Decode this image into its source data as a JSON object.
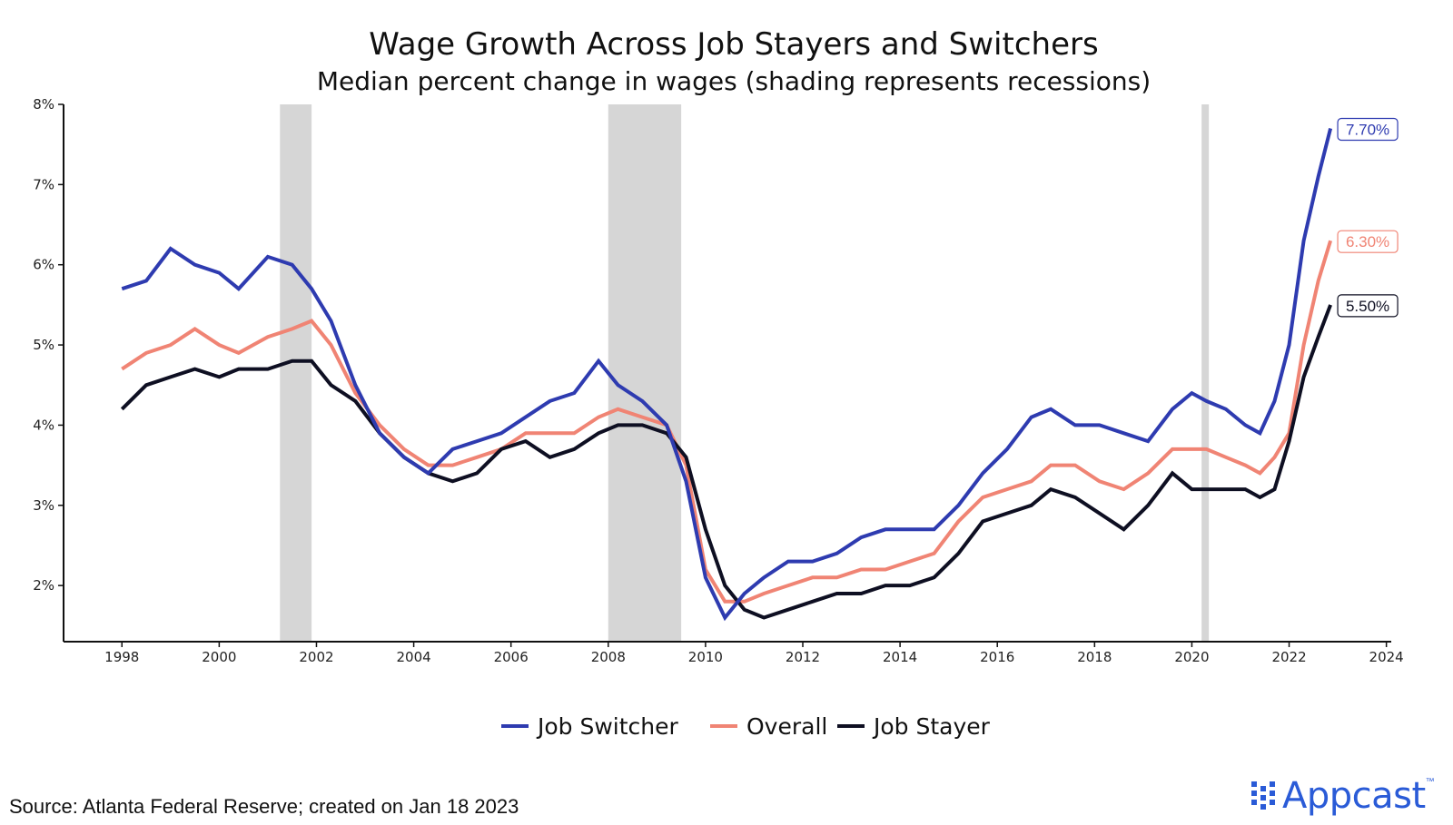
{
  "chart_data": {
    "type": "line",
    "title": "Wage Growth Across Job Stayers and Switchers",
    "subtitle": "Median percent change in wages (shading represents recessions)",
    "xlabel": "",
    "ylabel": "",
    "xlim": [
      1996.8,
      2024.1
    ],
    "ylim": [
      1.3,
      8.0
    ],
    "x_ticks": [
      1998,
      2000,
      2002,
      2004,
      2006,
      2008,
      2010,
      2012,
      2014,
      2016,
      2018,
      2020,
      2022,
      2024
    ],
    "x_tick_labels": [
      "1998",
      "2000",
      "2002",
      "2004",
      "2006",
      "2008",
      "2010",
      "2012",
      "2014",
      "2016",
      "2018",
      "2020",
      "2022",
      "2024"
    ],
    "y_ticks": [
      2,
      3,
      4,
      5,
      6,
      7,
      8
    ],
    "y_tick_labels": [
      "2%",
      "3%",
      "4%",
      "5%",
      "6%",
      "7%",
      "8%"
    ],
    "grid": false,
    "legend": "bottom",
    "recessions": [
      {
        "start": 2001.25,
        "end": 2001.9
      },
      {
        "start": 2008.0,
        "end": 2009.5
      },
      {
        "start": 2020.2,
        "end": 2020.35
      }
    ],
    "series": [
      {
        "name": "Job Switcher",
        "color": "#2e3bb0",
        "end_label": "7.70%",
        "x": [
          1998.0,
          1998.5,
          1999.0,
          1999.5,
          2000.0,
          2000.4,
          2001.0,
          2001.5,
          2001.9,
          2002.3,
          2002.8,
          2003.3,
          2003.8,
          2004.3,
          2004.8,
          2005.3,
          2005.8,
          2006.3,
          2006.8,
          2007.3,
          2007.8,
          2008.2,
          2008.7,
          2009.2,
          2009.6,
          2010.0,
          2010.4,
          2010.8,
          2011.2,
          2011.7,
          2012.2,
          2012.7,
          2013.2,
          2013.7,
          2014.2,
          2014.7,
          2015.2,
          2015.7,
          2016.2,
          2016.7,
          2017.1,
          2017.6,
          2018.1,
          2018.6,
          2019.1,
          2019.6,
          2020.0,
          2020.3,
          2020.7,
          2021.1,
          2021.4,
          2021.7,
          2022.0,
          2022.3,
          2022.6,
          2022.85
        ],
        "values": [
          5.7,
          5.8,
          6.2,
          6.0,
          5.9,
          5.7,
          6.1,
          6.0,
          5.7,
          5.3,
          4.5,
          3.9,
          3.6,
          3.4,
          3.7,
          3.8,
          3.9,
          4.1,
          4.3,
          4.4,
          4.8,
          4.5,
          4.3,
          4.0,
          3.3,
          2.1,
          1.6,
          1.9,
          2.1,
          2.3,
          2.3,
          2.4,
          2.6,
          2.7,
          2.7,
          2.7,
          3.0,
          3.4,
          3.7,
          4.1,
          4.2,
          4.0,
          4.0,
          3.9,
          3.8,
          4.2,
          4.4,
          4.3,
          4.2,
          4.0,
          3.9,
          4.3,
          5.0,
          6.3,
          7.1,
          7.7
        ]
      },
      {
        "name": "Overall",
        "color": "#f08474",
        "end_label": "6.30%",
        "x": [
          1998.0,
          1998.5,
          1999.0,
          1999.5,
          2000.0,
          2000.4,
          2001.0,
          2001.5,
          2001.9,
          2002.3,
          2002.8,
          2003.3,
          2003.8,
          2004.3,
          2004.8,
          2005.3,
          2005.8,
          2006.3,
          2006.8,
          2007.3,
          2007.8,
          2008.2,
          2008.7,
          2009.2,
          2009.6,
          2010.0,
          2010.4,
          2010.8,
          2011.2,
          2011.7,
          2012.2,
          2012.7,
          2013.2,
          2013.7,
          2014.2,
          2014.7,
          2015.2,
          2015.7,
          2016.2,
          2016.7,
          2017.1,
          2017.6,
          2018.1,
          2018.6,
          2019.1,
          2019.6,
          2020.0,
          2020.3,
          2020.7,
          2021.1,
          2021.4,
          2021.7,
          2022.0,
          2022.3,
          2022.6,
          2022.85
        ],
        "values": [
          4.7,
          4.9,
          5.0,
          5.2,
          5.0,
          4.9,
          5.1,
          5.2,
          5.3,
          5.0,
          4.4,
          4.0,
          3.7,
          3.5,
          3.5,
          3.6,
          3.7,
          3.9,
          3.9,
          3.9,
          4.1,
          4.2,
          4.1,
          4.0,
          3.5,
          2.2,
          1.8,
          1.8,
          1.9,
          2.0,
          2.1,
          2.1,
          2.2,
          2.2,
          2.3,
          2.4,
          2.8,
          3.1,
          3.2,
          3.3,
          3.5,
          3.5,
          3.3,
          3.2,
          3.4,
          3.7,
          3.7,
          3.7,
          3.6,
          3.5,
          3.4,
          3.6,
          3.9,
          5.0,
          5.8,
          6.3
        ]
      },
      {
        "name": "Job Stayer",
        "color": "#0e0f22",
        "end_label": "5.50%",
        "x": [
          1998.0,
          1998.5,
          1999.0,
          1999.5,
          2000.0,
          2000.4,
          2001.0,
          2001.5,
          2001.9,
          2002.3,
          2002.8,
          2003.3,
          2003.8,
          2004.3,
          2004.8,
          2005.3,
          2005.8,
          2006.3,
          2006.8,
          2007.3,
          2007.8,
          2008.2,
          2008.7,
          2009.2,
          2009.6,
          2010.0,
          2010.4,
          2010.8,
          2011.2,
          2011.7,
          2012.2,
          2012.7,
          2013.2,
          2013.7,
          2014.2,
          2014.7,
          2015.2,
          2015.7,
          2016.2,
          2016.7,
          2017.1,
          2017.6,
          2018.1,
          2018.6,
          2019.1,
          2019.6,
          2020.0,
          2020.3,
          2020.7,
          2021.1,
          2021.4,
          2021.7,
          2022.0,
          2022.3,
          2022.6,
          2022.85
        ],
        "values": [
          4.2,
          4.5,
          4.6,
          4.7,
          4.6,
          4.7,
          4.7,
          4.8,
          4.8,
          4.5,
          4.3,
          3.9,
          3.6,
          3.4,
          3.3,
          3.4,
          3.7,
          3.8,
          3.6,
          3.7,
          3.9,
          4.0,
          4.0,
          3.9,
          3.6,
          2.7,
          2.0,
          1.7,
          1.6,
          1.7,
          1.8,
          1.9,
          1.9,
          2.0,
          2.0,
          2.1,
          2.4,
          2.8,
          2.9,
          3.0,
          3.2,
          3.1,
          2.9,
          2.7,
          3.0,
          3.4,
          3.2,
          3.2,
          3.2,
          3.2,
          3.1,
          3.2,
          3.8,
          4.6,
          5.1,
          5.5
        ]
      }
    ],
    "source": "Source: Atlanta Federal Reserve; created on Jan 18 2023",
    "brand": "Appcast"
  }
}
